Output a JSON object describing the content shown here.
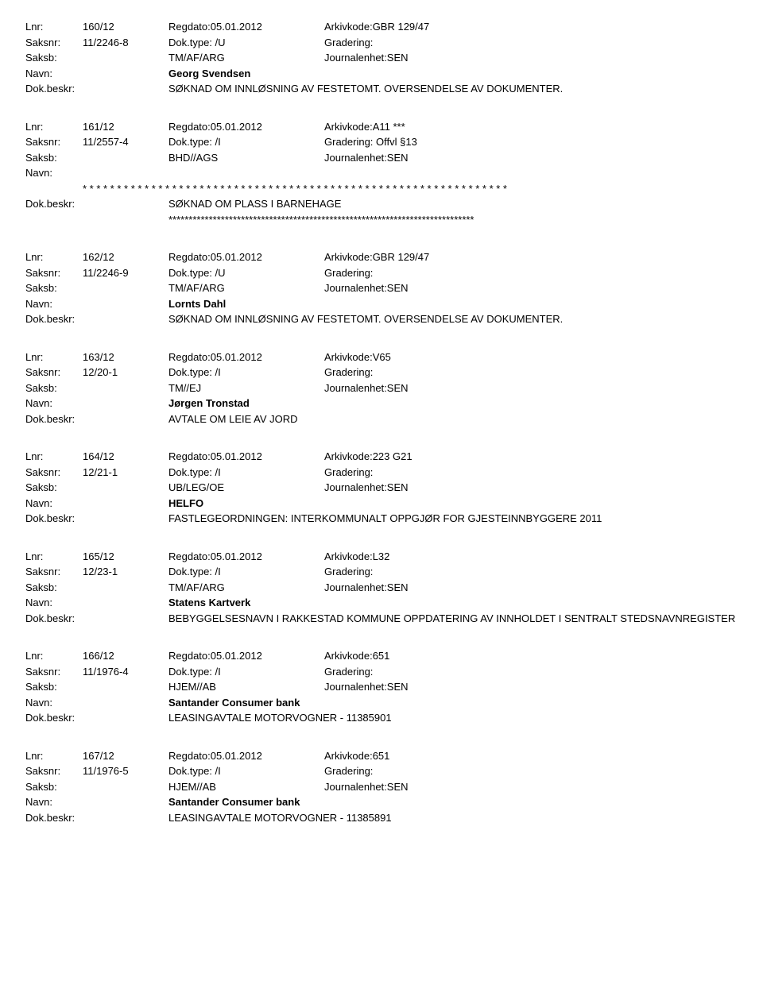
{
  "labels": {
    "lnr": "Lnr:",
    "saksnr": "Saksnr:",
    "saksb": "Saksb:",
    "navn": "Navn:",
    "dokbeskr": "Dok.beskr:",
    "regdato_prefix": "Regdato:",
    "arkivkode_prefix": "Arkivkode:",
    "doktype_prefix": "Dok.type:",
    "gradering_prefix": "Gradering:",
    "journalenhet_prefix": "Journalenhet:"
  },
  "entries": [
    {
      "lnr": "160/12",
      "regdato": "Regdato:05.01.2012",
      "arkivkode": "Arkivkode:GBR 129/47",
      "saksnr": "11/2246-8",
      "doktype": "Dok.type: /U",
      "gradering": "Gradering:",
      "saksb": "TM/AF/ARG",
      "journal": "Journalenhet:SEN",
      "navn": "Georg Svendsen",
      "dokbeskr": "SØKNAD OM INNLØSNING AV FESTETOMT. OVERSENDELSE AV DOKUMENTER.",
      "navn_stars": false,
      "beskr_stars": false
    },
    {
      "lnr": "161/12",
      "regdato": "Regdato:05.01.2012",
      "arkivkode": "Arkivkode:A11 ***",
      "saksnr": "11/2557-4",
      "doktype": "Dok.type: /I",
      "gradering": "Gradering: Offvl §13",
      "saksb": "BHD//AGS",
      "journal": "Journalenhet:SEN",
      "navn": "",
      "dokbeskr": "SØKNAD OM PLASS I BARNEHAGE",
      "navn_stars": true,
      "beskr_stars": true,
      "navn_star_text": "* * * * * * * * * * * * * * * * * * * * * * * * * * * * * * * * * * * * * * * * * * * * * * * * * * * * * * * * * * * * * *",
      "beskr_star_text": "****************************************************************************"
    },
    {
      "lnr": "162/12",
      "regdato": "Regdato:05.01.2012",
      "arkivkode": "Arkivkode:GBR 129/47",
      "saksnr": "11/2246-9",
      "doktype": "Dok.type: /U",
      "gradering": "Gradering:",
      "saksb": "TM/AF/ARG",
      "journal": "Journalenhet:SEN",
      "navn": "Lornts Dahl",
      "dokbeskr": "SØKNAD OM INNLØSNING AV FESTETOMT. OVERSENDELSE AV DOKUMENTER.",
      "navn_stars": false,
      "beskr_stars": false
    },
    {
      "lnr": "163/12",
      "regdato": "Regdato:05.01.2012",
      "arkivkode": "Arkivkode:V65",
      "saksnr": "12/20-1",
      "doktype": "Dok.type: /I",
      "gradering": "Gradering:",
      "saksb": "TM//EJ",
      "journal": "Journalenhet:SEN",
      "navn": "Jørgen Tronstad",
      "dokbeskr": "AVTALE OM LEIE AV JORD",
      "navn_stars": false,
      "beskr_stars": false
    },
    {
      "lnr": "164/12",
      "regdato": "Regdato:05.01.2012",
      "arkivkode": "Arkivkode:223 G21",
      "saksnr": "12/21-1",
      "doktype": "Dok.type: /I",
      "gradering": "Gradering:",
      "saksb": "UB/LEG/OE",
      "journal": "Journalenhet:SEN",
      "navn": "HELFO",
      "dokbeskr": "FASTLEGEORDNINGEN: INTERKOMMUNALT OPPGJØR FOR GJESTEINNBYGGERE 2011",
      "navn_stars": false,
      "beskr_stars": false
    },
    {
      "lnr": "165/12",
      "regdato": "Regdato:05.01.2012",
      "arkivkode": "Arkivkode:L32",
      "saksnr": "12/23-1",
      "doktype": "Dok.type: /I",
      "gradering": "Gradering:",
      "saksb": "TM/AF/ARG",
      "journal": "Journalenhet:SEN",
      "navn": "Statens Kartverk",
      "dokbeskr": "BEBYGGELSESNAVN I RAKKESTAD KOMMUNE OPPDATERING AV INNHOLDET I SENTRALT STEDSNAVNREGISTER",
      "navn_stars": false,
      "beskr_stars": false
    },
    {
      "lnr": "166/12",
      "regdato": "Regdato:05.01.2012",
      "arkivkode": "Arkivkode:651",
      "saksnr": "11/1976-4",
      "doktype": "Dok.type: /I",
      "gradering": "Gradering:",
      "saksb": "HJEM//AB",
      "journal": "Journalenhet:SEN",
      "navn": "Santander Consumer bank",
      "dokbeskr": "LEASINGAVTALE MOTORVOGNER - 11385901",
      "navn_stars": false,
      "beskr_stars": false
    },
    {
      "lnr": "167/12",
      "regdato": "Regdato:05.01.2012",
      "arkivkode": "Arkivkode:651",
      "saksnr": "11/1976-5",
      "doktype": "Dok.type: /I",
      "gradering": "Gradering:",
      "saksb": "HJEM//AB",
      "journal": "Journalenhet:SEN",
      "navn": "Santander Consumer bank",
      "dokbeskr": "LEASINGAVTALE MOTORVOGNER - 11385891",
      "navn_stars": false,
      "beskr_stars": false
    }
  ]
}
